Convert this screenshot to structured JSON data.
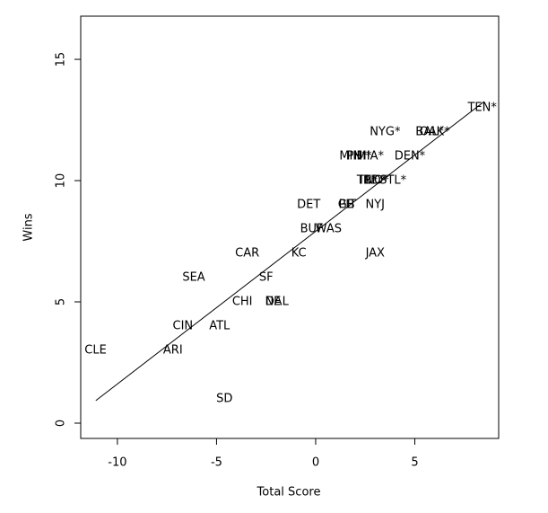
{
  "chart_data": {
    "type": "scatter",
    "xlabel": "Total Score",
    "ylabel": "Wins",
    "labels": [
      "TEN*",
      "NYG*",
      "BAL*",
      "OAK*",
      "MIN*",
      "PHI*",
      "MIA*",
      "DEN*",
      "TB*",
      "IND*",
      "NO*",
      "STL*",
      "DET",
      "GB",
      "PIT",
      "NYJ",
      "BUF",
      "WAS",
      "CAR",
      "KC",
      "JAX",
      "SEA",
      "SF",
      "CHI",
      "NE",
      "DAL",
      "CIN",
      "ATL",
      "CLE",
      "ARI",
      "SD"
    ],
    "x": [
      8.4,
      3.5,
      5.75,
      6.0,
      1.9,
      2.2,
      2.75,
      4.75,
      2.6,
      2.9,
      3.1,
      3.9,
      -0.35,
      1.55,
      1.6,
      3.0,
      -0.2,
      0.65,
      -3.45,
      -0.85,
      3.0,
      -6.15,
      -2.5,
      -3.7,
      -2.15,
      -1.95,
      -6.7,
      -4.85,
      -11.1,
      -7.2,
      -4.6
    ],
    "y": [
      13,
      12,
      12,
      12,
      11,
      11,
      11,
      11,
      10,
      10,
      10,
      10,
      9,
      9,
      9,
      9,
      8,
      8,
      7,
      7,
      7,
      6,
      6,
      5,
      5,
      5,
      4,
      4,
      3,
      3,
      1
    ],
    "fit_line": {
      "x": [
        -11.09,
        8.5
      ],
      "y": [
        0.93,
        13.26
      ]
    },
    "color": "#000000",
    "xlim": [
      -11.85,
      9.23
    ],
    "ylim": [
      -0.63,
      16.78
    ],
    "xticks": [
      -10,
      -5,
      0,
      5
    ],
    "yticks": [
      0,
      5,
      10,
      15
    ]
  }
}
